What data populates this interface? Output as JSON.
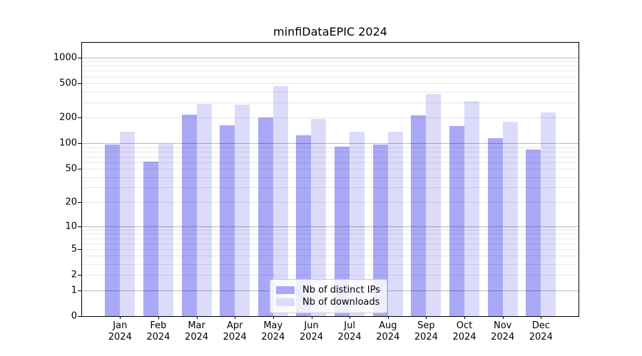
{
  "chart_data": {
    "type": "bar",
    "title": "minfiDataEPIC 2024",
    "categories": [
      "Jan",
      "Feb",
      "Mar",
      "Apr",
      "May",
      "Jun",
      "Jul",
      "Aug",
      "Sep",
      "Oct",
      "Nov",
      "Dec"
    ],
    "category_year": "2024",
    "series": [
      {
        "name": "Nb of distinct IPs",
        "color": "#a9a9f7",
        "values": [
          97,
          61,
          216,
          163,
          199,
          124,
          91,
          97,
          212,
          158,
          116,
          84
        ]
      },
      {
        "name": "Nb of downloads",
        "color": "#dcdcfa",
        "values": [
          138,
          98,
          290,
          285,
          465,
          192,
          138,
          137,
          375,
          310,
          180,
          230
        ]
      }
    ],
    "xlabel": "",
    "ylabel": "",
    "yscale": "log1p",
    "y_ticks": [
      0,
      1,
      2,
      5,
      10,
      20,
      50,
      100,
      200,
      500,
      1000
    ],
    "ylim": [
      0,
      1480
    ],
    "grid": {
      "shown": true,
      "major_at": [
        1,
        10,
        100,
        1000
      ],
      "minor_decades": true,
      "drawn_above_bars": true
    },
    "legend": {
      "position": "lower center",
      "background": "rgba(255,255,255,0.8)"
    },
    "colors": {
      "axis": "#000000",
      "major_grid": "rgba(0,0,0,0.27)",
      "minor_grid": "rgba(0,0,0,0.09)"
    }
  }
}
